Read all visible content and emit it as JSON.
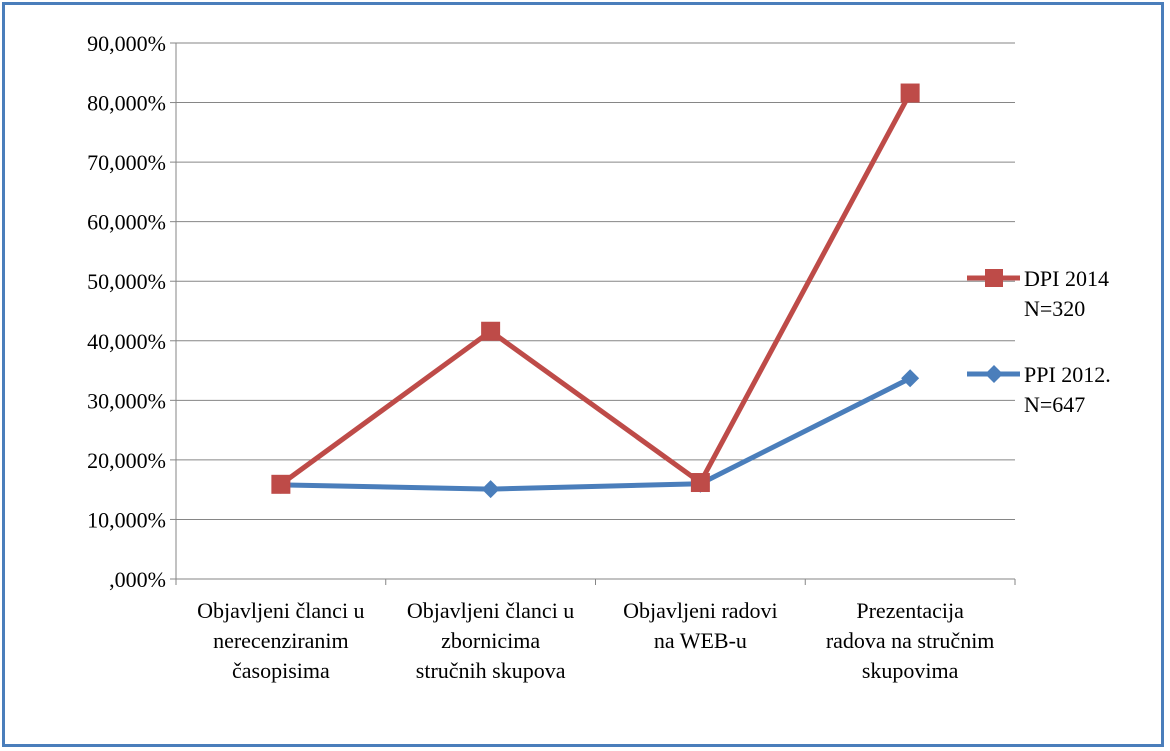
{
  "chart_data": {
    "type": "line",
    "title": "",
    "xlabel": "",
    "ylabel": "",
    "categories": [
      [
        "Objavljeni članci u",
        "nerecenziranim",
        "časopisima"
      ],
      [
        "Objavljeni članci u",
        "zbornicima",
        "stručnih skupova"
      ],
      [
        "Objavljeni radovi",
        "na WEB-u"
      ],
      [
        "Prezentacija",
        "radova na stručnim",
        "skupovima"
      ]
    ],
    "yticks": [
      ",000%",
      "10,000%",
      "20,000%",
      "30,000%",
      "40,000%",
      "50,000%",
      "60,000%",
      "70,000%",
      "80,000%",
      "90,000%"
    ],
    "ylim": [
      0,
      90
    ],
    "grid": true,
    "legend_position": "right",
    "series": [
      {
        "name": [
          "DPI 2014",
          "N=320"
        ],
        "color": "#be4b48",
        "marker": "square",
        "values": [
          15.9,
          41.6,
          16.2,
          81.6
        ]
      },
      {
        "name": [
          "PPI 2012.",
          "N=647"
        ],
        "color": "#4a7ebb",
        "marker": "diamond",
        "values": [
          15.8,
          15.1,
          16.0,
          33.7
        ]
      }
    ]
  }
}
